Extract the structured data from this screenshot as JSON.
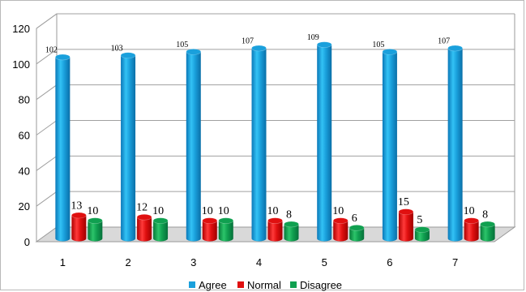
{
  "chart_data": {
    "type": "bar",
    "categories": [
      "1",
      "2",
      "3",
      "4",
      "5",
      "6",
      "7"
    ],
    "series": [
      {
        "name": "Agree",
        "values": [
          102,
          103,
          105,
          107,
          109,
          105,
          107
        ],
        "color": "#1aa0dc"
      },
      {
        "name": "Normal",
        "values": [
          13,
          12,
          10,
          10,
          10,
          15,
          10
        ],
        "color": "#e01010"
      },
      {
        "name": "Disagree",
        "values": [
          10,
          10,
          10,
          8,
          6,
          5,
          8
        ],
        "color": "#10a050"
      }
    ],
    "ylim": [
      0,
      120
    ],
    "yticks": [
      "0",
      "20",
      "40",
      "60",
      "80",
      "100",
      "120"
    ],
    "grid": true,
    "legend_position": "bottom"
  }
}
